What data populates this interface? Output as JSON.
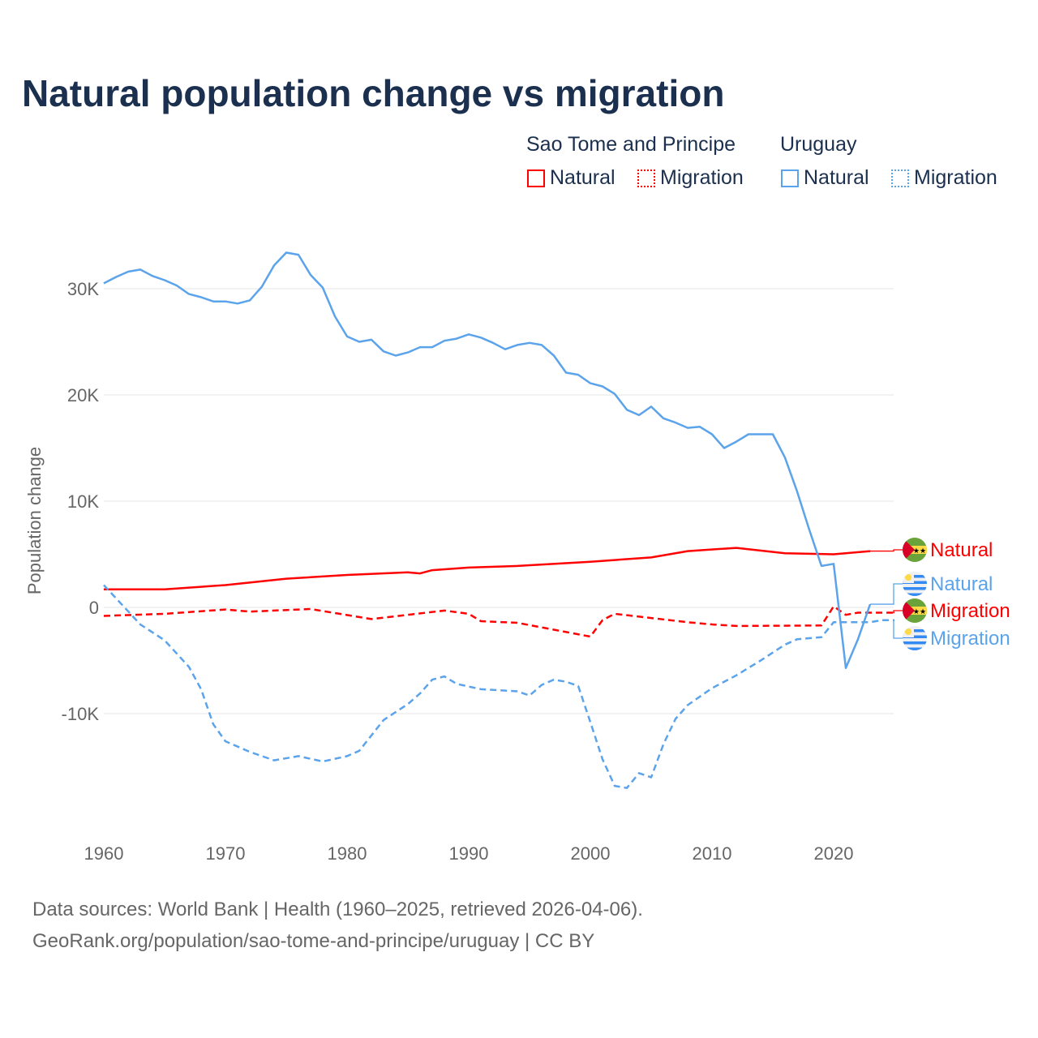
{
  "title": "Natural population change vs migration",
  "legend": {
    "groups": [
      {
        "country": "Sao Tome and Principe",
        "items": [
          "Natural",
          "Migration"
        ],
        "color": "#ff0000"
      },
      {
        "country": "Uruguay",
        "items": [
          "Natural",
          "Migration"
        ],
        "color": "#5ba3ea"
      }
    ]
  },
  "footer": {
    "line1": "Data sources: World Bank | Health (1960–2025, retrieved 2026-04-06).",
    "line2": "GeoRank.org/population/sao-tome-and-principe/uruguay | CC BY"
  },
  "chart_data": {
    "type": "line",
    "title": "Natural population change vs migration",
    "xlabel": "",
    "ylabel": "Population change",
    "xlim": [
      1960,
      2025
    ],
    "ylim": [
      -20000,
      35000
    ],
    "x_ticks": [
      "1960",
      "1970",
      "1980",
      "1990",
      "2000",
      "2010",
      "2020"
    ],
    "y_ticks": [
      {
        "v": 30000,
        "label": "30K"
      },
      {
        "v": 20000,
        "label": "20K"
      },
      {
        "v": 10000,
        "label": "10K"
      },
      {
        "v": 0,
        "label": "0"
      },
      {
        "v": -10000,
        "label": "-10K"
      }
    ],
    "grid": true,
    "series": [
      {
        "name": "Natural",
        "country": "Sao Tome and Principe",
        "style": "solid",
        "color": "#ff0000",
        "end_label": "Natural",
        "points": [
          [
            1960,
            1700
          ],
          [
            1965,
            1700
          ],
          [
            1970,
            2100
          ],
          [
            1975,
            2700
          ],
          [
            1980,
            3050
          ],
          [
            1985,
            3300
          ],
          [
            1986,
            3200
          ],
          [
            1987,
            3500
          ],
          [
            1990,
            3750
          ],
          [
            1994,
            3900
          ],
          [
            2000,
            4300
          ],
          [
            2005,
            4700
          ],
          [
            2008,
            5300
          ],
          [
            2012,
            5600
          ],
          [
            2016,
            5100
          ],
          [
            2020,
            5000
          ],
          [
            2023,
            5300
          ]
        ]
      },
      {
        "name": "Migration",
        "country": "Sao Tome and Principe",
        "style": "dashed",
        "color": "#ff0000",
        "end_label": "Migration",
        "points": [
          [
            1960,
            -800
          ],
          [
            1965,
            -600
          ],
          [
            1970,
            -200
          ],
          [
            1972,
            -400
          ],
          [
            1977,
            -150
          ],
          [
            1982,
            -1100
          ],
          [
            1988,
            -300
          ],
          [
            1990,
            -600
          ],
          [
            1991,
            -1300
          ],
          [
            1994,
            -1450
          ],
          [
            1997,
            -2100
          ],
          [
            2000,
            -2750
          ],
          [
            2001,
            -1200
          ],
          [
            2002,
            -600
          ],
          [
            2005,
            -1000
          ],
          [
            2008,
            -1400
          ],
          [
            2010,
            -1600
          ],
          [
            2012,
            -1750
          ],
          [
            2019,
            -1700
          ],
          [
            2020,
            100
          ],
          [
            2021,
            -700
          ],
          [
            2022,
            -500
          ],
          [
            2025,
            -500
          ]
        ]
      },
      {
        "name": "Natural",
        "country": "Uruguay",
        "style": "solid",
        "color": "#5ba3ea",
        "end_label": "Natural",
        "points": [
          [
            1960,
            30500
          ],
          [
            1961,
            31100
          ],
          [
            1962,
            31600
          ],
          [
            1963,
            31800
          ],
          [
            1964,
            31200
          ],
          [
            1965,
            30800
          ],
          [
            1966,
            30300
          ],
          [
            1967,
            29500
          ],
          [
            1968,
            29200
          ],
          [
            1969,
            28800
          ],
          [
            1970,
            28800
          ],
          [
            1971,
            28600
          ],
          [
            1972,
            28900
          ],
          [
            1973,
            30200
          ],
          [
            1974,
            32200
          ],
          [
            1975,
            33400
          ],
          [
            1976,
            33200
          ],
          [
            1977,
            31300
          ],
          [
            1978,
            30100
          ],
          [
            1979,
            27400
          ],
          [
            1980,
            25500
          ],
          [
            1981,
            25000
          ],
          [
            1982,
            25200
          ],
          [
            1983,
            24100
          ],
          [
            1984,
            23700
          ],
          [
            1985,
            24000
          ],
          [
            1986,
            24500
          ],
          [
            1987,
            24500
          ],
          [
            1988,
            25100
          ],
          [
            1989,
            25300
          ],
          [
            1990,
            25700
          ],
          [
            1991,
            25400
          ],
          [
            1992,
            24900
          ],
          [
            1993,
            24300
          ],
          [
            1994,
            24700
          ],
          [
            1995,
            24900
          ],
          [
            1996,
            24700
          ],
          [
            1997,
            23700
          ],
          [
            1998,
            22100
          ],
          [
            1999,
            21900
          ],
          [
            2000,
            21100
          ],
          [
            2001,
            20800
          ],
          [
            2002,
            20100
          ],
          [
            2003,
            18600
          ],
          [
            2004,
            18100
          ],
          [
            2005,
            18900
          ],
          [
            2006,
            17800
          ],
          [
            2007,
            17400
          ],
          [
            2008,
            16900
          ],
          [
            2009,
            17000
          ],
          [
            2010,
            16300
          ],
          [
            2011,
            15000
          ],
          [
            2012,
            15600
          ],
          [
            2013,
            16300
          ],
          [
            2014,
            16300
          ],
          [
            2015,
            16300
          ],
          [
            2016,
            14100
          ],
          [
            2017,
            10900
          ],
          [
            2018,
            7300
          ],
          [
            2019,
            3900
          ],
          [
            2020,
            4100
          ],
          [
            2021,
            -5700
          ],
          [
            2022,
            -3000
          ],
          [
            2023,
            300
          ]
        ]
      },
      {
        "name": "Migration",
        "country": "Uruguay",
        "style": "dashed",
        "color": "#5ba3ea",
        "end_label": "Migration",
        "points": [
          [
            1960,
            2100
          ],
          [
            1963,
            -1600
          ],
          [
            1965,
            -3100
          ],
          [
            1967,
            -5600
          ],
          [
            1968,
            -7700
          ],
          [
            1969,
            -11000
          ],
          [
            1970,
            -12600
          ],
          [
            1972,
            -13600
          ],
          [
            1974,
            -14400
          ],
          [
            1976,
            -14000
          ],
          [
            1978,
            -14500
          ],
          [
            1980,
            -14000
          ],
          [
            1981,
            -13500
          ],
          [
            1983,
            -10600
          ],
          [
            1985,
            -9100
          ],
          [
            1986,
            -8100
          ],
          [
            1987,
            -6800
          ],
          [
            1988,
            -6500
          ],
          [
            1989,
            -7200
          ],
          [
            1991,
            -7700
          ],
          [
            1994,
            -7900
          ],
          [
            1995,
            -8300
          ],
          [
            1996,
            -7300
          ],
          [
            1997,
            -6800
          ],
          [
            1998,
            -7000
          ],
          [
            1999,
            -7400
          ],
          [
            2000,
            -10800
          ],
          [
            2001,
            -14300
          ],
          [
            2002,
            -16800
          ],
          [
            2003,
            -17000
          ],
          [
            2004,
            -15600
          ],
          [
            2005,
            -16000
          ],
          [
            2006,
            -12900
          ],
          [
            2007,
            -10500
          ],
          [
            2008,
            -9200
          ],
          [
            2010,
            -7600
          ],
          [
            2012,
            -6400
          ],
          [
            2014,
            -5000
          ],
          [
            2016,
            -3500
          ],
          [
            2017,
            -3000
          ],
          [
            2019,
            -2800
          ],
          [
            2020,
            -1400
          ],
          [
            2023,
            -1400
          ],
          [
            2024,
            -1200
          ],
          [
            2025,
            -1200
          ]
        ]
      }
    ]
  }
}
